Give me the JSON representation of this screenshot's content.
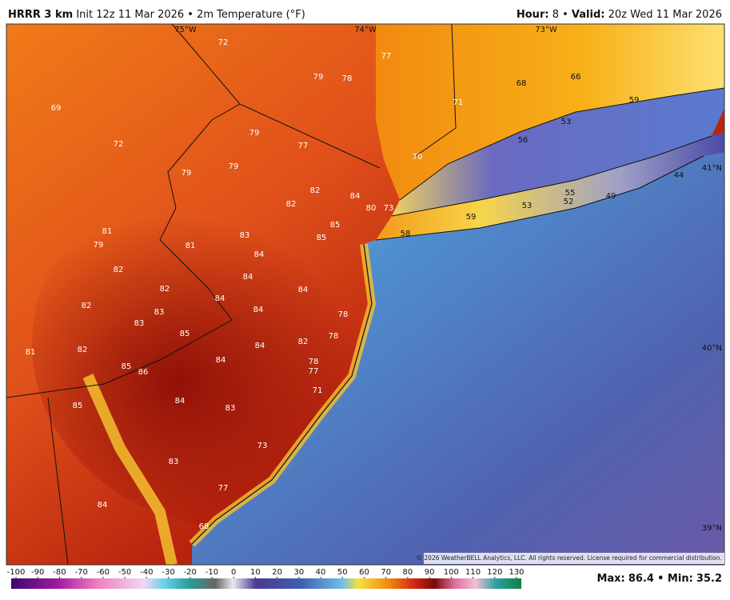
{
  "header": {
    "model": "HRRR 3 km",
    "init": "Init 12z 11 Mar 2026 • 2m Temperature (°F)",
    "hour_label": "Hour:",
    "hour": "8 •",
    "valid_label": "Valid:",
    "valid": "20z Wed 11 Mar 2026"
  },
  "map": {
    "temperatures": [
      72,
      77,
      79,
      78,
      71,
      68,
      66,
      59,
      69,
      72,
      79,
      77,
      53,
      56,
      70,
      79,
      79,
      44,
      82,
      84,
      55,
      52,
      49,
      82,
      80,
      73,
      59,
      53,
      85,
      58,
      81,
      83,
      85,
      79,
      81,
      84,
      82,
      84,
      82,
      84,
      82,
      84,
      83,
      84,
      83,
      78,
      85,
      78,
      82,
      84,
      81,
      82,
      84,
      78,
      77,
      85,
      86,
      71,
      84,
      85,
      83,
      73,
      83,
      77,
      84,
      68
    ],
    "coordinates": [
      "75°W",
      "74°W",
      "73°W",
      "41°N",
      "40°N",
      "39°N"
    ],
    "credit": "© 2026 WeatherBELL Analytics, LLC. All rights reserved. License required for commercial distribution."
  },
  "colorbar": {
    "ticks": [
      -100,
      -90,
      -80,
      -70,
      -60,
      -50,
      -40,
      -30,
      -20,
      -10,
      0,
      10,
      20,
      30,
      40,
      50,
      60,
      70,
      80,
      90,
      100,
      110,
      120,
      130
    ]
  },
  "stats": {
    "max_label": "Max:",
    "max": 86.4,
    "min_label": "• Min:",
    "min": 35.2
  }
}
